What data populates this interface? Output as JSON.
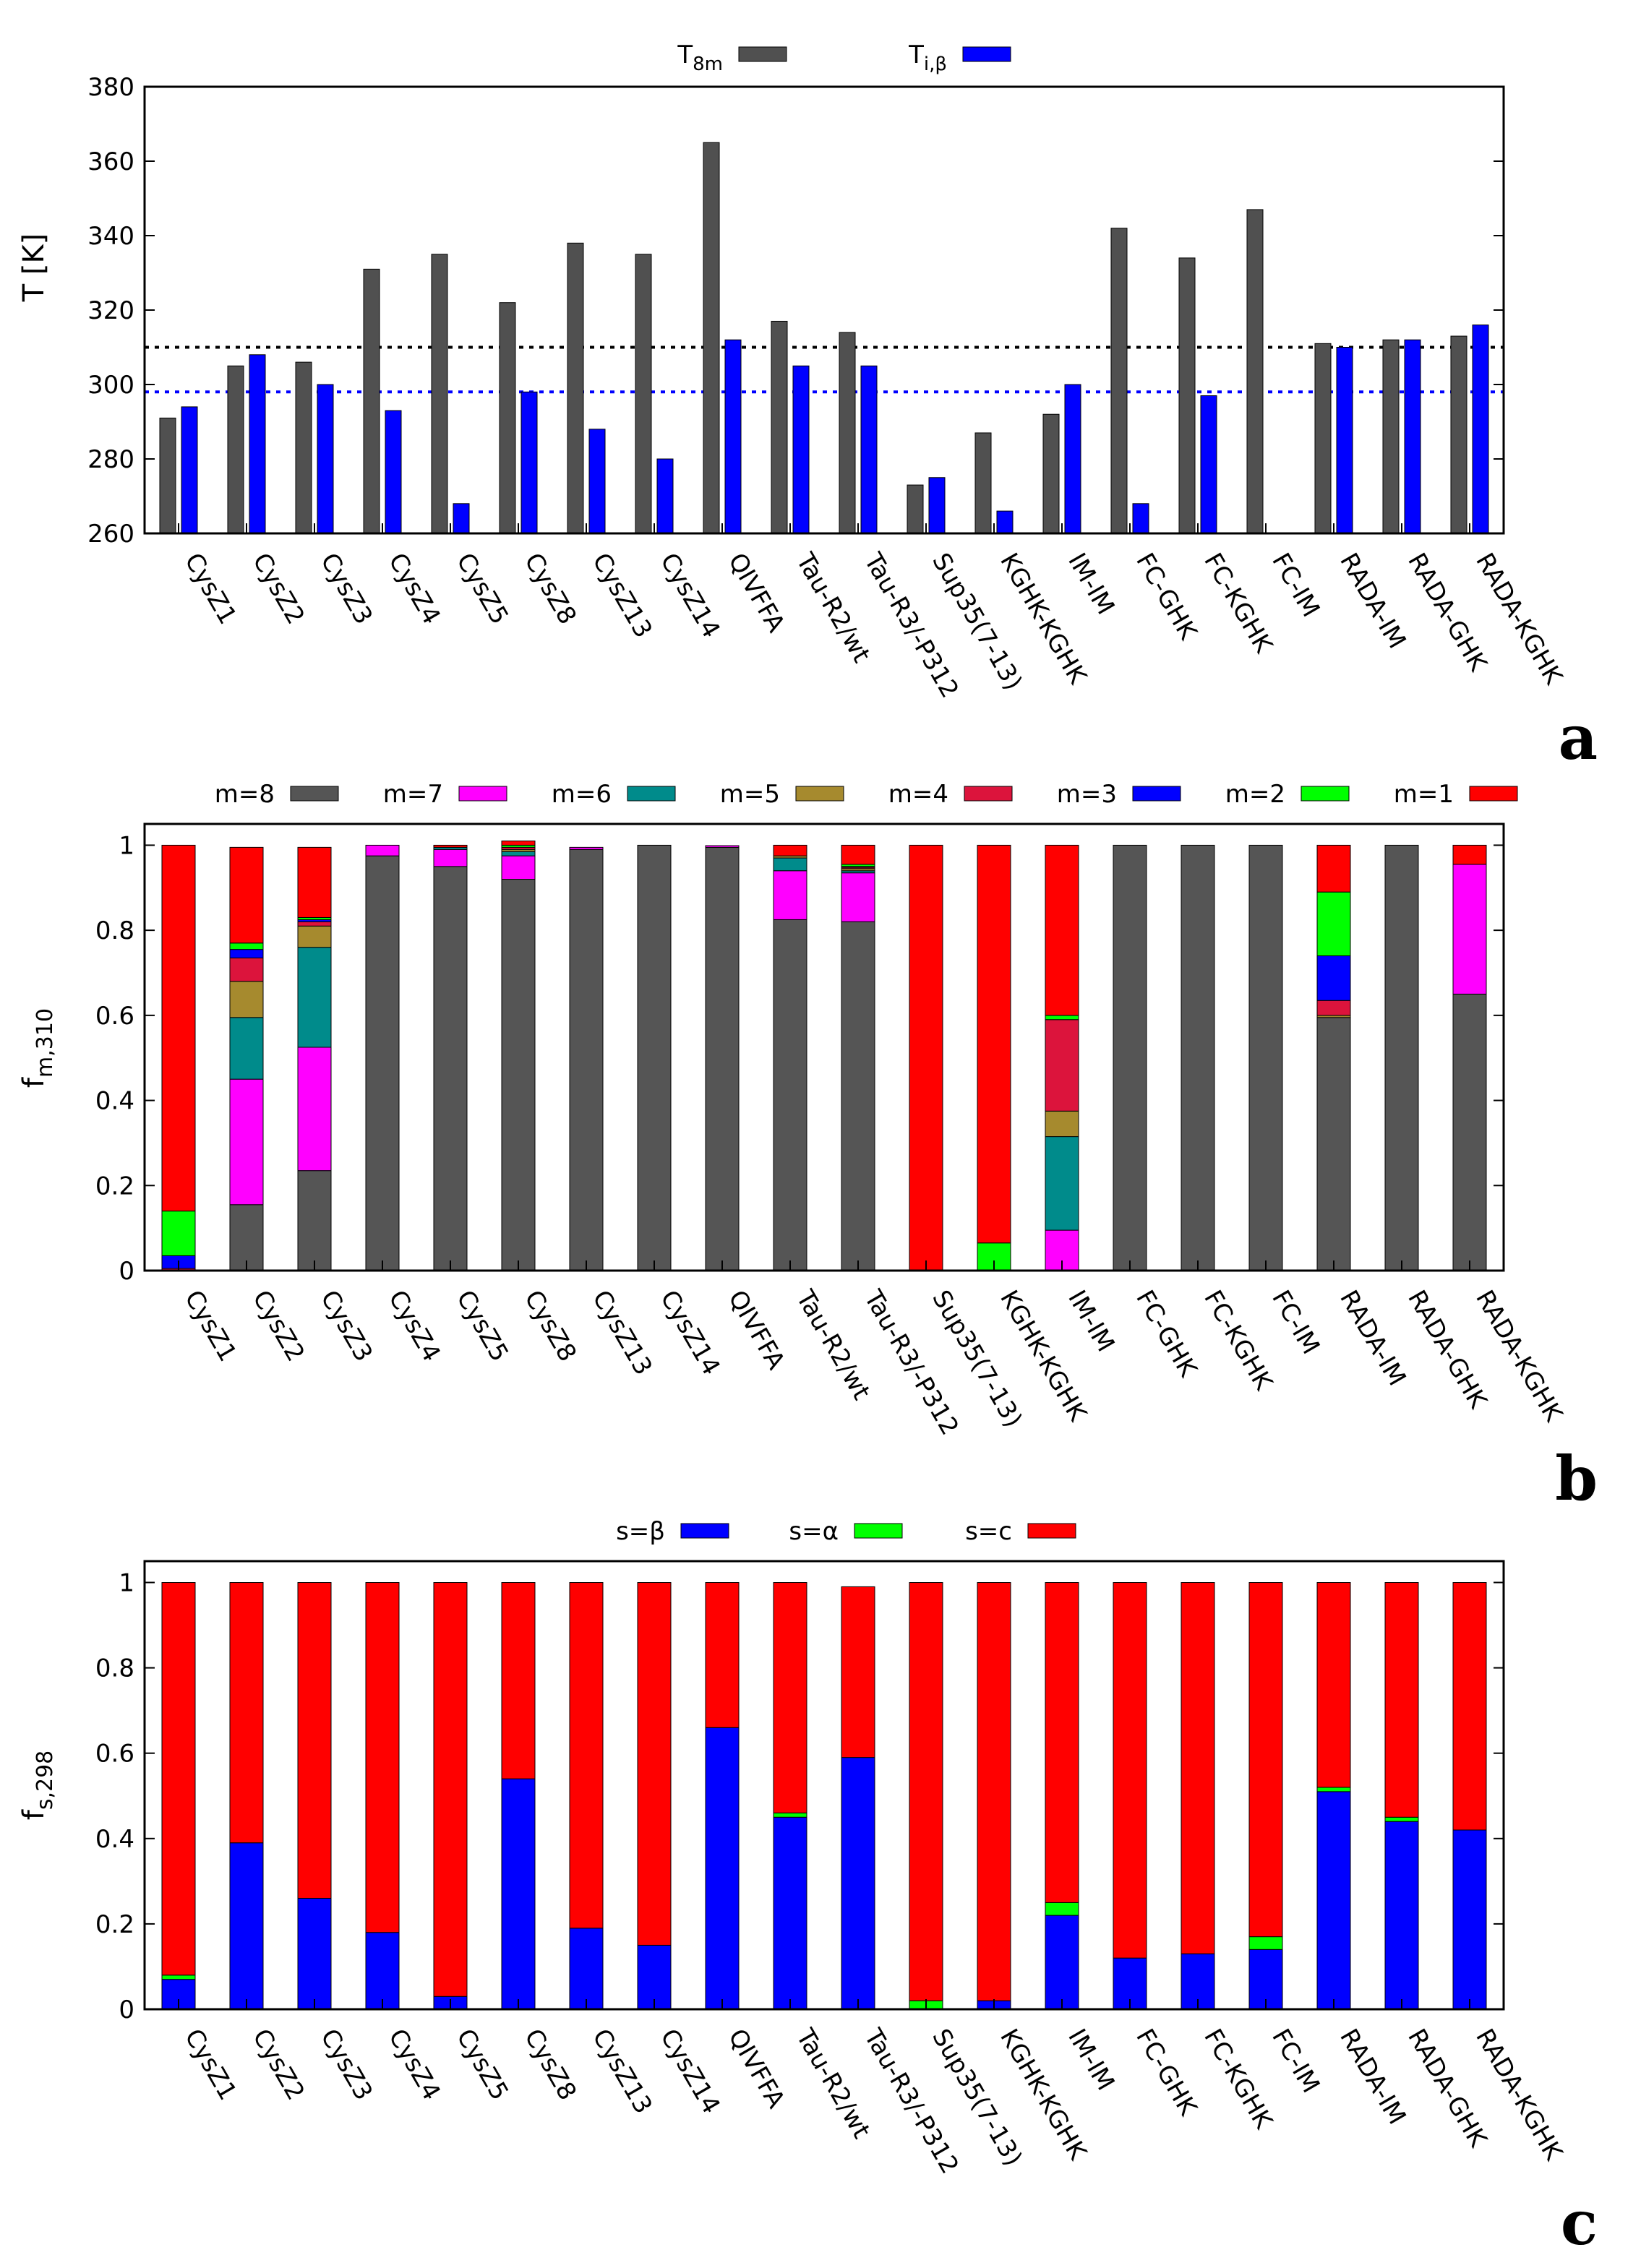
{
  "panels": [
    {
      "letter": "a",
      "ylabel": "T [K]",
      "ylabel_main": "T [K]",
      "ylabel_sub": ""
    },
    {
      "letter": "b",
      "ylabel": "fm,310",
      "ylabel_main": "f",
      "ylabel_sub": "m,310"
    },
    {
      "letter": "c",
      "ylabel": "fs,298",
      "ylabel_main": "f",
      "ylabel_sub": "s,298"
    }
  ],
  "chart_data": [
    {
      "type": "bar",
      "title": "",
      "xlabel": "",
      "ylabel": "T [K]",
      "ylim": [
        260,
        380
      ],
      "yticks": [
        260,
        280,
        300,
        320,
        340,
        360,
        380
      ],
      "legend_position": "top-center",
      "categories": [
        "CysZ1",
        "CysZ2",
        "CysZ3",
        "CysZ4",
        "CysZ5",
        "CysZ8",
        "CysZ13",
        "CysZ14",
        "QIVFFA",
        "Tau-R2/wt",
        "Tau-R3/-P312",
        "Sup35(7-13)",
        "KGHK-KGHK",
        "IM-IM",
        "FC-GHK",
        "FC-KGHK",
        "FC-IM",
        "RADA-IM",
        "RADA-GHK",
        "RADA-KGHK"
      ],
      "series": [
        {
          "name": "T8m",
          "label_main": "T",
          "label_sub": "8m",
          "color": "#505050",
          "values": [
            291,
            305,
            306,
            331,
            335,
            322,
            338,
            335,
            365,
            317,
            314,
            273,
            287,
            292,
            342,
            334,
            347,
            311,
            312,
            313
          ]
        },
        {
          "name": "Ti,β",
          "label_main": "T",
          "label_sub": "i,β",
          "color": "#0000ff",
          "values": [
            294,
            308,
            300,
            293,
            268,
            298,
            288,
            280,
            312,
            305,
            305,
            275,
            266,
            300,
            268,
            297,
            null,
            310,
            312,
            316
          ]
        }
      ],
      "reference_lines": [
        {
          "y": 310,
          "color": "#000000",
          "style": "dotted"
        },
        {
          "y": 298,
          "color": "#0000ff",
          "style": "dotted"
        }
      ]
    },
    {
      "type": "bar",
      "stacked": true,
      "title": "",
      "xlabel": "",
      "ylabel": "fm,310",
      "ylim": [
        0,
        1.05
      ],
      "yticks": [
        0,
        0.2,
        0.4,
        0.6,
        0.8,
        1
      ],
      "legend_position": "top",
      "categories": [
        "CysZ1",
        "CysZ2",
        "CysZ3",
        "CysZ4",
        "CysZ5",
        "CysZ8",
        "CysZ13",
        "CysZ14",
        "QIVFFA",
        "Tau-R2/wt",
        "Tau-R3/-P312",
        "Sup35(7-13)",
        "KGHK-KGHK",
        "IM-IM",
        "FC-GHK",
        "FC-KGHK",
        "FC-IM",
        "RADA-IM",
        "RADA-GHK",
        "RADA-KGHK"
      ],
      "series": [
        {
          "name": "m=8",
          "color": "#555555",
          "values": [
            0,
            0.155,
            0.235,
            0.975,
            0.95,
            0.92,
            0.99,
            1.0,
            0.995,
            0.825,
            0.82,
            0,
            0,
            0,
            1.0,
            1.0,
            1.0,
            0.595,
            1.0,
            0.65
          ]
        },
        {
          "name": "m=7",
          "color": "#ff00ff",
          "values": [
            0,
            0.295,
            0.29,
            0.025,
            0.04,
            0.055,
            0.005,
            0,
            0.004,
            0.115,
            0.115,
            0,
            0,
            0.095,
            0,
            0,
            0,
            0,
            0,
            0.305
          ]
        },
        {
          "name": "m=6",
          "color": "#008b8b",
          "values": [
            0,
            0.145,
            0.235,
            0,
            0.005,
            0.01,
            0,
            0,
            0,
            0.03,
            0.005,
            0,
            0,
            0.22,
            0,
            0,
            0,
            0,
            0,
            0
          ]
        },
        {
          "name": "m=5",
          "color": "#a68a2e",
          "values": [
            0,
            0.085,
            0.05,
            0,
            0,
            0.005,
            0,
            0,
            0,
            0.005,
            0.005,
            0,
            0,
            0.06,
            0,
            0,
            0,
            0.005,
            0,
            0
          ]
        },
        {
          "name": "m=4",
          "color": "#dc143c",
          "values": [
            0.005,
            0.055,
            0.01,
            0,
            0,
            0.005,
            0,
            0,
            0,
            0,
            0.003,
            0,
            0,
            0.215,
            0,
            0,
            0,
            0.035,
            0,
            0
          ]
        },
        {
          "name": "m=3",
          "color": "#0000ff",
          "values": [
            0.03,
            0.02,
            0.005,
            0,
            0,
            0,
            0,
            0,
            0,
            0,
            0.002,
            0,
            0,
            0,
            0,
            0,
            0,
            0.105,
            0,
            0
          ]
        },
        {
          "name": "m=2",
          "color": "#00ff00",
          "values": [
            0.105,
            0.015,
            0.005,
            0,
            0,
            0.005,
            0,
            0,
            0,
            0,
            0.005,
            0,
            0.065,
            0.01,
            0,
            0,
            0,
            0.15,
            0,
            0
          ]
        },
        {
          "name": "m=1",
          "color": "#ff0000",
          "values": [
            0.86,
            0.225,
            0.165,
            0,
            0.005,
            0.01,
            0,
            0,
            0,
            0.025,
            0.045,
            1.0,
            0.935,
            0.4,
            0,
            0,
            0,
            0.11,
            0,
            0.045
          ]
        }
      ]
    },
    {
      "type": "bar",
      "stacked": true,
      "title": "",
      "xlabel": "",
      "ylabel": "fs,298",
      "ylim": [
        0,
        1.05
      ],
      "yticks": [
        0,
        0.2,
        0.4,
        0.6,
        0.8,
        1
      ],
      "legend_position": "top",
      "categories": [
        "CysZ1",
        "CysZ2",
        "CysZ3",
        "CysZ4",
        "CysZ5",
        "CysZ8",
        "CysZ13",
        "CysZ14",
        "QIVFFA",
        "Tau-R2/wt",
        "Tau-R3/-P312",
        "Sup35(7-13)",
        "KGHK-KGHK",
        "IM-IM",
        "FC-GHK",
        "FC-KGHK",
        "FC-IM",
        "RADA-IM",
        "RADA-GHK",
        "RADA-KGHK"
      ],
      "series": [
        {
          "name": "s=β",
          "color": "#0000ff",
          "values": [
            0.07,
            0.39,
            0.26,
            0.18,
            0.03,
            0.54,
            0.19,
            0.15,
            0.66,
            0.45,
            0.59,
            0,
            0.02,
            0.22,
            0.12,
            0.13,
            0.14,
            0.51,
            0.44,
            0.42
          ]
        },
        {
          "name": "s=α",
          "color": "#00ff00",
          "values": [
            0.01,
            0,
            0,
            0,
            0,
            0,
            0,
            0,
            0,
            0.01,
            0,
            0.02,
            0,
            0.03,
            0,
            0,
            0.03,
            0.01,
            0.01,
            0
          ]
        },
        {
          "name": "s=c",
          "color": "#ff0000",
          "values": [
            0.92,
            0.61,
            0.74,
            0.82,
            0.97,
            0.46,
            0.81,
            0.85,
            0.34,
            0.54,
            0.4,
            0.98,
            0.98,
            0.75,
            0.88,
            0.87,
            0.83,
            0.48,
            0.55,
            0.58
          ]
        }
      ]
    }
  ]
}
